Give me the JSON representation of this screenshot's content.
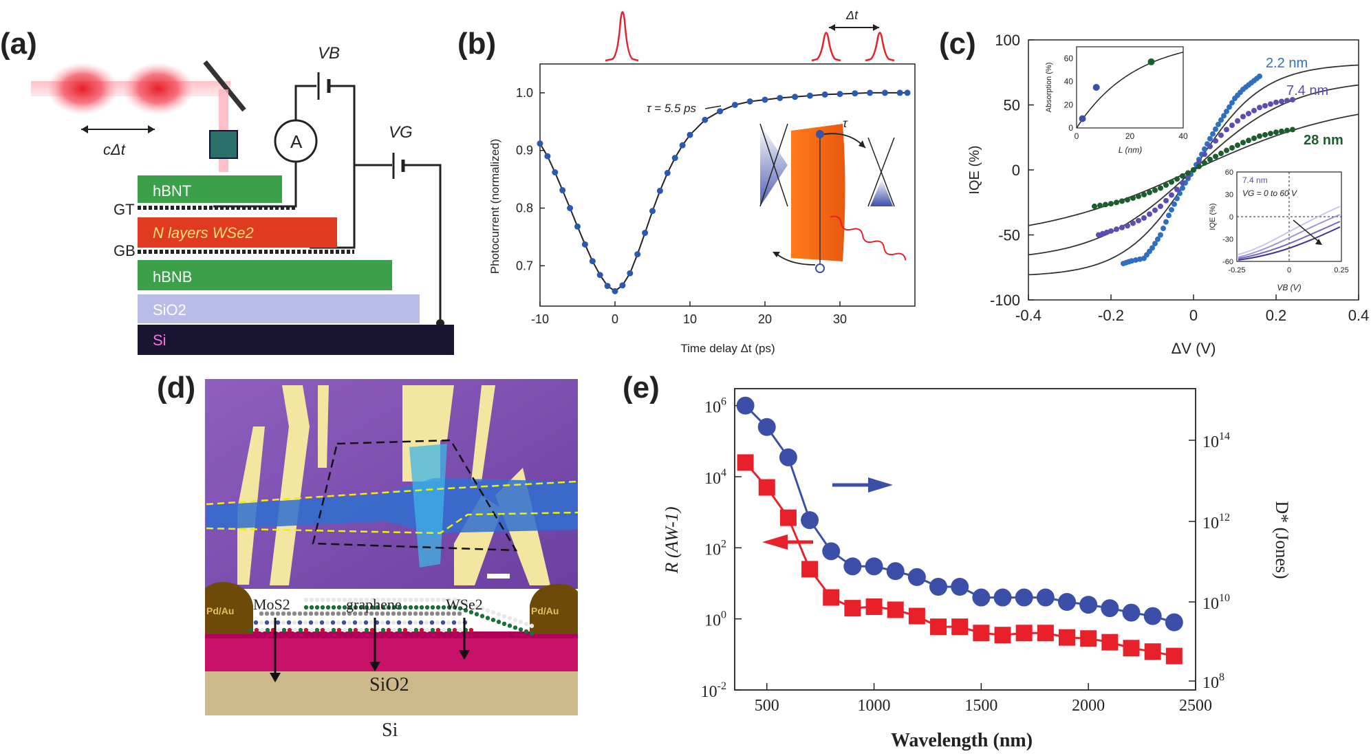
{
  "panel_labels": {
    "a": "(a)",
    "b": "(b)",
    "c": "(c)",
    "d": "(d)",
    "e": "(e)"
  },
  "colors": {
    "blue": "#3b4fa8",
    "red": "#e8202a",
    "green": "#1a5e2c",
    "purple": "#5a4fb0",
    "ink": "#222222"
  },
  "panel_a": {
    "pulse_label": "cΔt",
    "vb": "VB",
    "vg": "VG",
    "ammeter": "A",
    "gt": "GT",
    "gb": "GB",
    "layers": [
      "hBNT",
      "N layers WSe2",
      "hBNB",
      "SiO2",
      "Si"
    ]
  },
  "panel_b": {
    "dt_label": "Δt",
    "tau_label": "τ = 5.5 ps",
    "inset_tau": "τ"
  },
  "panel_d": {
    "labels": [
      "MoS2",
      "graphene",
      "WSe2"
    ],
    "contact": "Pd/Au",
    "layers": [
      "SiO2",
      "Si"
    ]
  },
  "chart_data": [
    {
      "panel": "b",
      "type": "scatter",
      "xlabel": "Time delay Δt (ps)",
      "ylabel": "Photocurrent (normalized)",
      "xlim": [
        -10,
        40
      ],
      "ylim": [
        0.63,
        1.05
      ],
      "xticks": [
        "-10",
        "0",
        "10",
        "20",
        "30"
      ],
      "yticks": [
        "0.7",
        "0.8",
        "0.9",
        "1.0"
      ],
      "series": [
        {
          "points": [
            [
              -10,
              0.912
            ],
            [
              -9,
              0.89
            ],
            [
              -8,
              0.862
            ],
            [
              -7,
              0.831
            ],
            [
              -6,
              0.8
            ],
            [
              -5,
              0.768
            ],
            [
              -4,
              0.737
            ],
            [
              -3,
              0.708
            ],
            [
              -2,
              0.684
            ],
            [
              -1,
              0.665
            ],
            [
              0,
              0.656
            ],
            [
              1,
              0.666
            ],
            [
              2,
              0.687
            ],
            [
              3,
              0.72
            ],
            [
              4,
              0.757
            ],
            [
              5,
              0.795
            ],
            [
              6,
              0.83
            ],
            [
              7,
              0.861
            ],
            [
              8,
              0.887
            ],
            [
              9,
              0.909
            ],
            [
              10,
              0.927
            ],
            [
              12,
              0.953
            ],
            [
              14,
              0.968
            ],
            [
              16,
              0.979
            ],
            [
              18,
              0.985
            ],
            [
              20,
              0.988
            ],
            [
              22,
              0.991
            ],
            [
              24,
              0.993
            ],
            [
              26,
              0.995
            ],
            [
              28,
              0.997
            ],
            [
              30,
              0.998
            ],
            [
              32,
              0.999
            ],
            [
              34,
              1.0
            ],
            [
              36,
              1.0
            ],
            [
              38,
              1.0
            ],
            [
              39,
              1.0
            ]
          ]
        }
      ]
    },
    {
      "panel": "c",
      "type": "scatter",
      "xlabel": "ΔV (V)",
      "ylabel": "IQE (%)",
      "xlim": [
        -0.4,
        0.4
      ],
      "ylim": [
        -100,
        100
      ],
      "xticks": [
        "-0.4",
        "-0.2",
        "0",
        "0.2",
        "0.4"
      ],
      "yticks": [
        "-100",
        "-50",
        "0",
        "50",
        "100"
      ],
      "series": [
        {
          "name": "2.2 nm",
          "color": "#2f6fbf",
          "points": [
            [
              -0.17,
              -72
            ],
            [
              -0.15,
              -70
            ],
            [
              -0.12,
              -68
            ],
            [
              -0.1,
              -60
            ],
            [
              -0.08,
              -50
            ],
            [
              -0.06,
              -35
            ],
            [
              -0.04,
              -22
            ],
            [
              -0.02,
              -10
            ],
            [
              0,
              0
            ],
            [
              0.02,
              12
            ],
            [
              0.04,
              24
            ],
            [
              0.06,
              35
            ],
            [
              0.08,
              45
            ],
            [
              0.1,
              55
            ],
            [
              0.12,
              62
            ],
            [
              0.14,
              67
            ],
            [
              0.16,
              72
            ]
          ]
        },
        {
          "name": "7.4 nm",
          "color": "#5a4fb0",
          "points": [
            [
              -0.23,
              -50
            ],
            [
              -0.2,
              -47
            ],
            [
              -0.16,
              -43
            ],
            [
              -0.12,
              -37
            ],
            [
              -0.08,
              -28
            ],
            [
              -0.04,
              -15
            ],
            [
              0,
              0
            ],
            [
              0.04,
              18
            ],
            [
              0.08,
              31
            ],
            [
              0.12,
              41
            ],
            [
              0.16,
              48
            ],
            [
              0.2,
              52
            ],
            [
              0.24,
              54
            ]
          ]
        },
        {
          "name": "28 nm",
          "color": "#1a5e2c",
          "points": [
            [
              -0.24,
              -28
            ],
            [
              -0.2,
              -26
            ],
            [
              -0.16,
              -23
            ],
            [
              -0.12,
              -19
            ],
            [
              -0.08,
              -14
            ],
            [
              -0.04,
              -7
            ],
            [
              0,
              0
            ],
            [
              0.04,
              8
            ],
            [
              0.08,
              15
            ],
            [
              0.12,
              21
            ],
            [
              0.16,
              26
            ],
            [
              0.2,
              29
            ],
            [
              0.24,
              31
            ]
          ]
        }
      ]
    },
    {
      "panel": "c-inset-absorption",
      "type": "scatter",
      "xlabel": "L (nm)",
      "ylabel": "Absorption (%)",
      "xlim": [
        0,
        40
      ],
      "ylim": [
        0,
        70
      ],
      "xticks": [
        "0",
        "20",
        "40"
      ],
      "yticks": [
        "0",
        "20",
        "40",
        "60"
      ],
      "points": [
        [
          2.2,
          8
        ],
        [
          7.4,
          35
        ],
        [
          28,
          57
        ]
      ]
    },
    {
      "panel": "c-inset-gate",
      "type": "line",
      "title": "7.4 nm",
      "annotation": "VG = 0 to 60 V",
      "xlabel": "VB (V)",
      "ylabel": "IQE (%)",
      "xlim": [
        -0.25,
        0.25
      ],
      "ylim": [
        -60,
        60
      ],
      "xticks": [
        "-0.25",
        "0",
        "0.25"
      ],
      "yticks": [
        "-60",
        "-30",
        "0",
        "30",
        "60"
      ]
    },
    {
      "panel": "e",
      "type": "line",
      "xlabel": "Wavelength (nm)",
      "ylabel": "R (AW-1)",
      "y2label": "D* (Jones)",
      "xlim": [
        350,
        2500
      ],
      "ylim_log": [
        0.01,
        3000000
      ],
      "xticks": [
        "500",
        "1000",
        "1500",
        "2000",
        "2500"
      ],
      "yticks": [
        "10^-2",
        "10^0",
        "10^2",
        "10^4",
        "10^6"
      ],
      "y2ticks": [
        "10^8",
        "10^10",
        "10^12",
        "10^14"
      ],
      "categories": [
        400,
        500,
        600,
        700,
        800,
        900,
        1000,
        1100,
        1200,
        1300,
        1400,
        1500,
        1600,
        1700,
        1800,
        1900,
        2000,
        2100,
        2200,
        2300,
        2400
      ],
      "series": [
        {
          "marker": "square",
          "axis": "left",
          "color": "#e8202a",
          "values": [
            25000,
            5000,
            700,
            25,
            4,
            2,
            2.2,
            1.8,
            1.2,
            0.6,
            0.6,
            0.4,
            0.35,
            0.4,
            0.4,
            0.3,
            0.28,
            0.22,
            0.15,
            0.12,
            0.09
          ]
        },
        {
          "marker": "circle",
          "axis": "right",
          "color": "#3b4fa8",
          "values": [
            1000000,
            250000,
            35000,
            600,
            80,
            30,
            30,
            22,
            15,
            8,
            8,
            4,
            4,
            4,
            4,
            3,
            2.5,
            2,
            1.5,
            1.2,
            0.8
          ]
        }
      ]
    }
  ]
}
